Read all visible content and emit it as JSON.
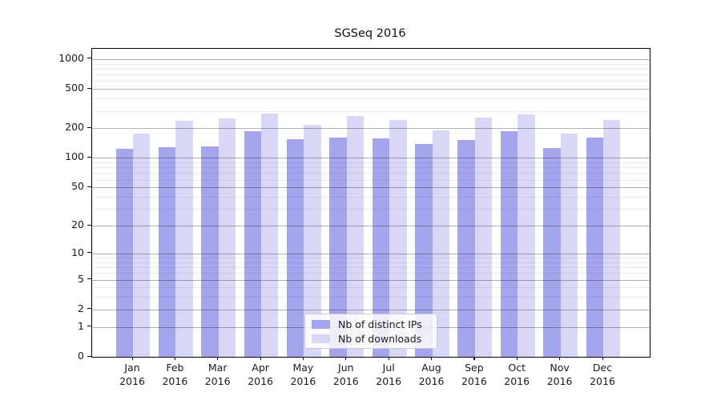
{
  "chart_data": {
    "type": "bar",
    "title": "SGSeq 2016",
    "y_scale": "log1p",
    "grid": "both-major-and-minor, drawn above bars",
    "legend_position": "inside axes, lower center",
    "categories": [
      "Jan",
      "Feb",
      "Mar",
      "Apr",
      "May",
      "Jun",
      "Jul",
      "Aug",
      "Sep",
      "Oct",
      "Nov",
      "Dec"
    ],
    "year_label": "2016",
    "series": [
      {
        "name": "Nb of distinct IPs",
        "color": "#a5a5ed",
        "values": [
          124,
          128,
          132,
          188,
          154,
          160,
          158,
          138,
          152,
          187,
          127,
          162
        ]
      },
      {
        "name": "Nb of downloads",
        "color": "#d8d8f6",
        "values": [
          178,
          238,
          253,
          283,
          217,
          266,
          242,
          190,
          258,
          275,
          178,
          242
        ]
      }
    ],
    "yticks": [
      0,
      1,
      2,
      5,
      10,
      20,
      50,
      100,
      200,
      500,
      1000
    ],
    "yticks_minor": [
      3,
      4,
      6,
      7,
      8,
      9,
      30,
      40,
      60,
      70,
      80,
      90,
      300,
      400,
      600,
      700,
      800,
      900
    ],
    "ylim": [
      0,
      1270
    ],
    "xlabel": "",
    "ylabel": ""
  }
}
